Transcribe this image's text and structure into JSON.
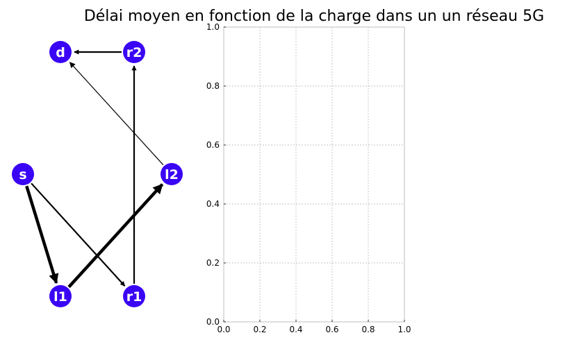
{
  "title": "Délai moyen en fonction de la charge dans un un réseau 5G",
  "colors": {
    "node": "#3a05f5",
    "node_text": "#ffffff",
    "edge": "#000000",
    "axis_frame": "#bfbfbf",
    "grid": "#b0b0b0"
  },
  "graph": {
    "nodes": [
      {
        "id": "d",
        "label": "d"
      },
      {
        "id": "r2",
        "label": "r2"
      },
      {
        "id": "s",
        "label": "s"
      },
      {
        "id": "l2",
        "label": "l2"
      },
      {
        "id": "l1",
        "label": "l1"
      },
      {
        "id": "r1",
        "label": "r1"
      }
    ],
    "edges": [
      {
        "from": "r2",
        "to": "d",
        "weight": "medium"
      },
      {
        "from": "l2",
        "to": "d",
        "weight": "thin"
      },
      {
        "from": "r1",
        "to": "r2",
        "weight": "medium"
      },
      {
        "from": "s",
        "to": "l1",
        "weight": "thick"
      },
      {
        "from": "s",
        "to": "r1",
        "weight": "medium"
      },
      {
        "from": "l1",
        "to": "l2",
        "weight": "thick"
      }
    ]
  },
  "chart_data": {
    "type": "line",
    "series": [],
    "xlim": [
      0.0,
      1.0
    ],
    "ylim": [
      0.0,
      1.0
    ],
    "xticks": [
      "0.0",
      "0.2",
      "0.4",
      "0.6",
      "0.8",
      "1.0"
    ],
    "yticks": [
      "0.0",
      "0.2",
      "0.4",
      "0.6",
      "0.8",
      "1.0"
    ],
    "grid": true,
    "grid_style": "dashed"
  }
}
